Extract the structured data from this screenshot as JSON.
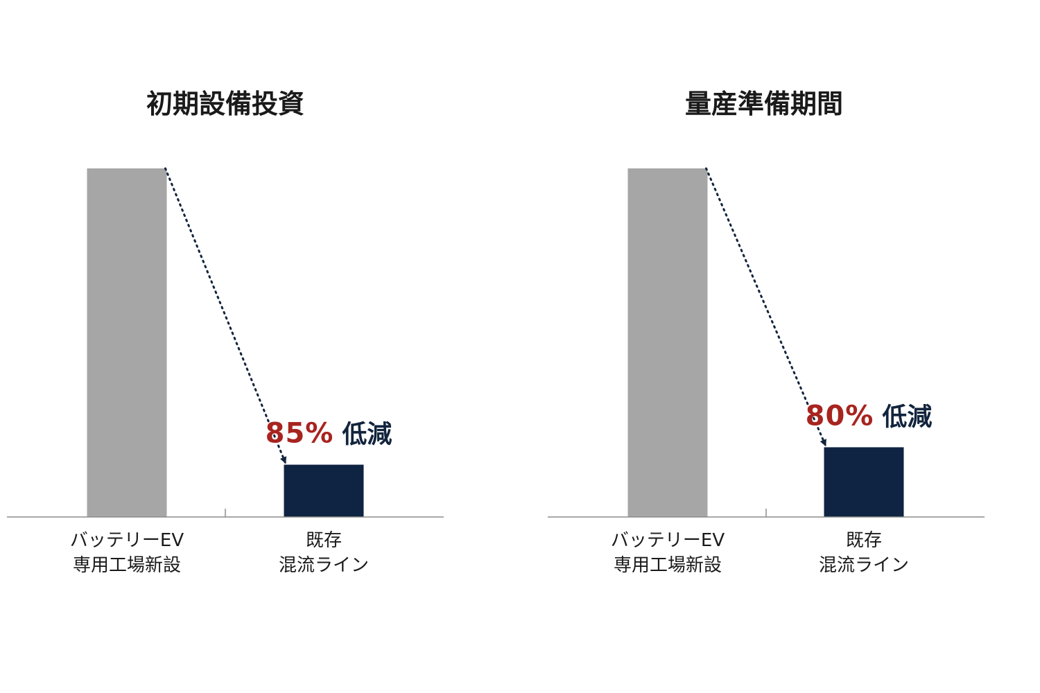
{
  "chart_data": [
    {
      "type": "bar",
      "title": "初期設備投資",
      "categories": [
        [
          "バッテリーEV",
          "専用工場新設"
        ],
        [
          "既存",
          "混流ライン"
        ]
      ],
      "values": [
        100,
        15
      ],
      "ylim": [
        0,
        100
      ],
      "colors": [
        "#a6a6a6",
        "#0f2442"
      ],
      "annotation": {
        "percent": "85%",
        "text": "低減"
      }
    },
    {
      "type": "bar",
      "title": "量産準備期間",
      "categories": [
        [
          "バッテリーEV",
          "専用工場新設"
        ],
        [
          "既存",
          "混流ライン"
        ]
      ],
      "values": [
        100,
        20
      ],
      "ylim": [
        0,
        100
      ],
      "colors": [
        "#a6a6a6",
        "#0f2442"
      ],
      "annotation": {
        "percent": "80%",
        "text": "低減"
      }
    }
  ]
}
